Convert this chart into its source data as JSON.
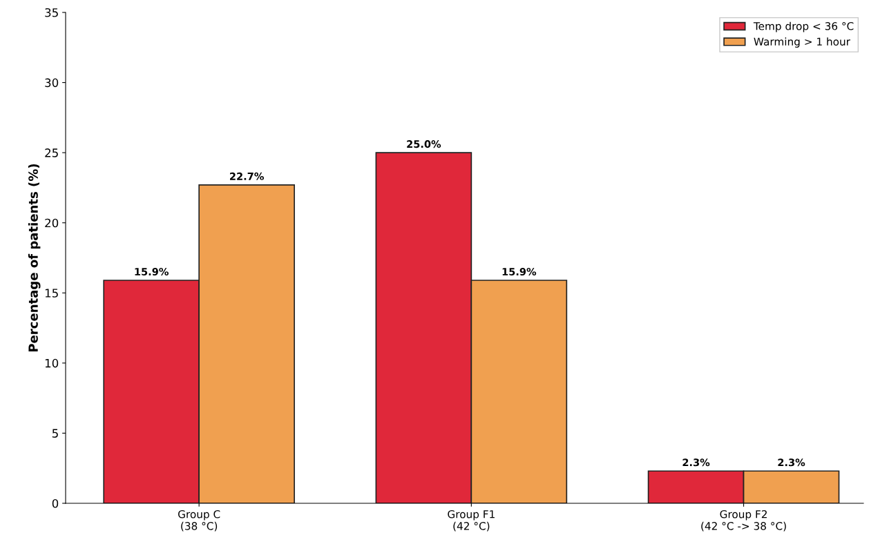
{
  "chart_data": {
    "type": "bar",
    "ylabel": "Percentage of patients (%)",
    "categories": [
      "Group C\n(38 °C)",
      "Group F1\n(42 °C)",
      "Group F2\n(42 °C -> 38 °C)"
    ],
    "series": [
      {
        "name": "Temp drop < 36 °C",
        "color": "#e0283a",
        "values": [
          15.9,
          25.0,
          2.3
        ],
        "value_labels": [
          "15.9%",
          "25.0%",
          "2.3%"
        ]
      },
      {
        "name": "Warming > 1 hour",
        "color": "#f0a050",
        "values": [
          22.7,
          15.9,
          2.3
        ],
        "value_labels": [
          "22.7%",
          "15.9%",
          "2.3%"
        ]
      }
    ],
    "ylim": [
      0,
      35
    ],
    "yticks": [
      0,
      5,
      10,
      15,
      20,
      25,
      30,
      35
    ],
    "legend": "top right",
    "grid": false
  }
}
